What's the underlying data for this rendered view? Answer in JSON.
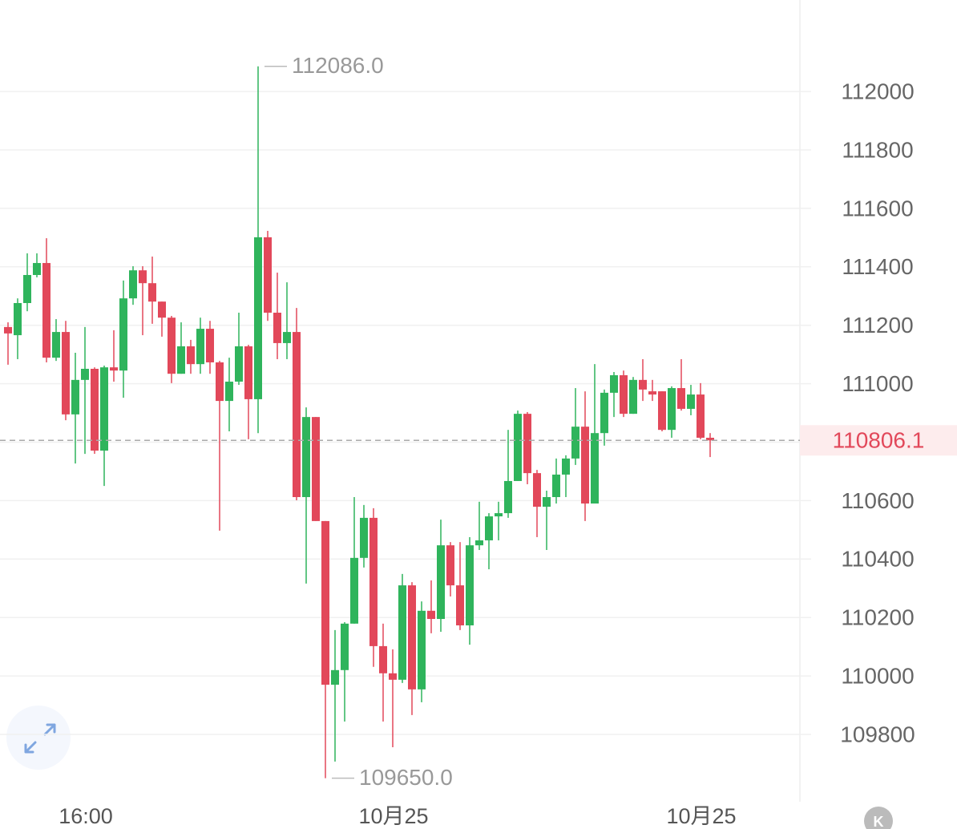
{
  "chart_data": {
    "type": "candlestick",
    "categories": [
      null,
      null,
      null,
      null,
      null,
      null,
      null,
      null,
      "16:00",
      null,
      null,
      null,
      null,
      null,
      null,
      null,
      null,
      null,
      null,
      null,
      null,
      null,
      null,
      null,
      null,
      null,
      null,
      null,
      null,
      null,
      null,
      null,
      null,
      null,
      null,
      null,
      null,
      null,
      null,
      null,
      "10月25",
      null,
      null,
      null,
      null,
      null,
      null,
      null,
      null,
      null,
      null,
      null,
      null,
      null,
      null,
      null,
      null,
      null,
      null,
      null,
      null,
      null,
      null,
      null,
      null,
      null,
      null,
      null,
      null,
      null,
      null,
      null,
      "10月25",
      null
    ],
    "open": [
      111194,
      111166,
      111276,
      111372,
      111413,
      111089,
      111177,
      110895,
      111013,
      111051,
      110771,
      111056,
      111045,
      111292,
      111388,
      111344,
      111281,
      111226,
      111034,
      111128,
      111067,
      111188,
      111073,
      110941,
      111007,
      111128,
      110947,
      111501,
      111243,
      111139,
      111177,
      110612,
      110886,
      110530,
      109970,
      110020,
      110179,
      110404,
      110541,
      110102,
      110009,
      109987,
      110310,
      109954,
      110223,
      110195,
      110447,
      110310,
      110173,
      110447,
      110464,
      110546,
      110557,
      110667,
      110897,
      110694,
      110579,
      110612,
      110689,
      110744,
      110853,
      110590,
      110831,
      110969,
      111029,
      110897,
      111013,
      110974,
      110974,
      110842,
      110985,
      110914,
      110963,
      110815
    ],
    "high": [
      111210,
      111292,
      111446,
      111446,
      111498,
      111221,
      111215,
      111106,
      111194,
      111056,
      111062,
      111183,
      111353,
      111402,
      111402,
      111435,
      111281,
      111232,
      111210,
      111150,
      111226,
      111215,
      111078,
      111089,
      111243,
      111133,
      112086,
      111523,
      111380,
      111347,
      111259,
      110919,
      110886,
      110530,
      110157,
      110184,
      110612,
      110585,
      110574,
      110179,
      110091,
      110349,
      110321,
      110255,
      110327,
      110535,
      110458,
      110458,
      110475,
      110596,
      110557,
      110596,
      110842,
      110908,
      110903,
      110705,
      110634,
      110744,
      110755,
      110985,
      110974,
      111067,
      110980,
      111040,
      111045,
      111023,
      111084,
      111013,
      110974,
      110991,
      111084,
      110996,
      111002,
      110831
    ],
    "low": [
      111065,
      111084,
      111248,
      111364,
      111073,
      111078,
      110875,
      110727,
      110760,
      110760,
      110650,
      111007,
      110952,
      111270,
      111166,
      111205,
      111161,
      111002,
      111034,
      111034,
      111034,
      111034,
      110497,
      110837,
      110996,
      110810,
      110831,
      111215,
      111084,
      111084,
      110601,
      110316,
      110530,
      109650,
      109707,
      109844,
      110179,
      110371,
      110031,
      109844,
      109756,
      109976,
      109866,
      109910,
      110146,
      110151,
      110272,
      110157,
      110107,
      110431,
      110365,
      110464,
      110541,
      110667,
      110656,
      110475,
      110431,
      110590,
      110612,
      110722,
      110530,
      110590,
      110788,
      110886,
      110886,
      110897,
      110941,
      110941,
      110837,
      110815,
      110908,
      110892,
      110810,
      110749
    ],
    "close": [
      111172,
      111276,
      111372,
      111413,
      111089,
      111177,
      110895,
      111013,
      111051,
      110771,
      111056,
      111045,
      111292,
      111388,
      111344,
      111281,
      111226,
      111034,
      111128,
      111067,
      111188,
      111073,
      110941,
      111007,
      111128,
      110947,
      111501,
      111243,
      111139,
      111177,
      110612,
      110886,
      110530,
      109970,
      110020,
      110179,
      110404,
      110541,
      110102,
      110009,
      109987,
      110310,
      109954,
      110223,
      110195,
      110447,
      110310,
      110173,
      110447,
      110464,
      110546,
      110557,
      110667,
      110897,
      110694,
      110579,
      110612,
      110689,
      110744,
      110853,
      110590,
      110831,
      110969,
      111029,
      110897,
      111013,
      110980,
      110963,
      110842,
      110985,
      110914,
      110963,
      110815,
      110806.1
    ],
    "up_color": "#2fb45c",
    "down_color": "#e2485a",
    "ylim": [
      109575,
      112313
    ],
    "yticks": [
      109800,
      110000,
      110200,
      110400,
      110600,
      110800,
      111000,
      111200,
      111400,
      111600,
      111800,
      112000
    ],
    "grid": true,
    "annotations": [
      {
        "value": 112086,
        "label": "112086.0"
      },
      {
        "value": 109650,
        "label": "109650.0"
      }
    ],
    "badge": "K"
  }
}
